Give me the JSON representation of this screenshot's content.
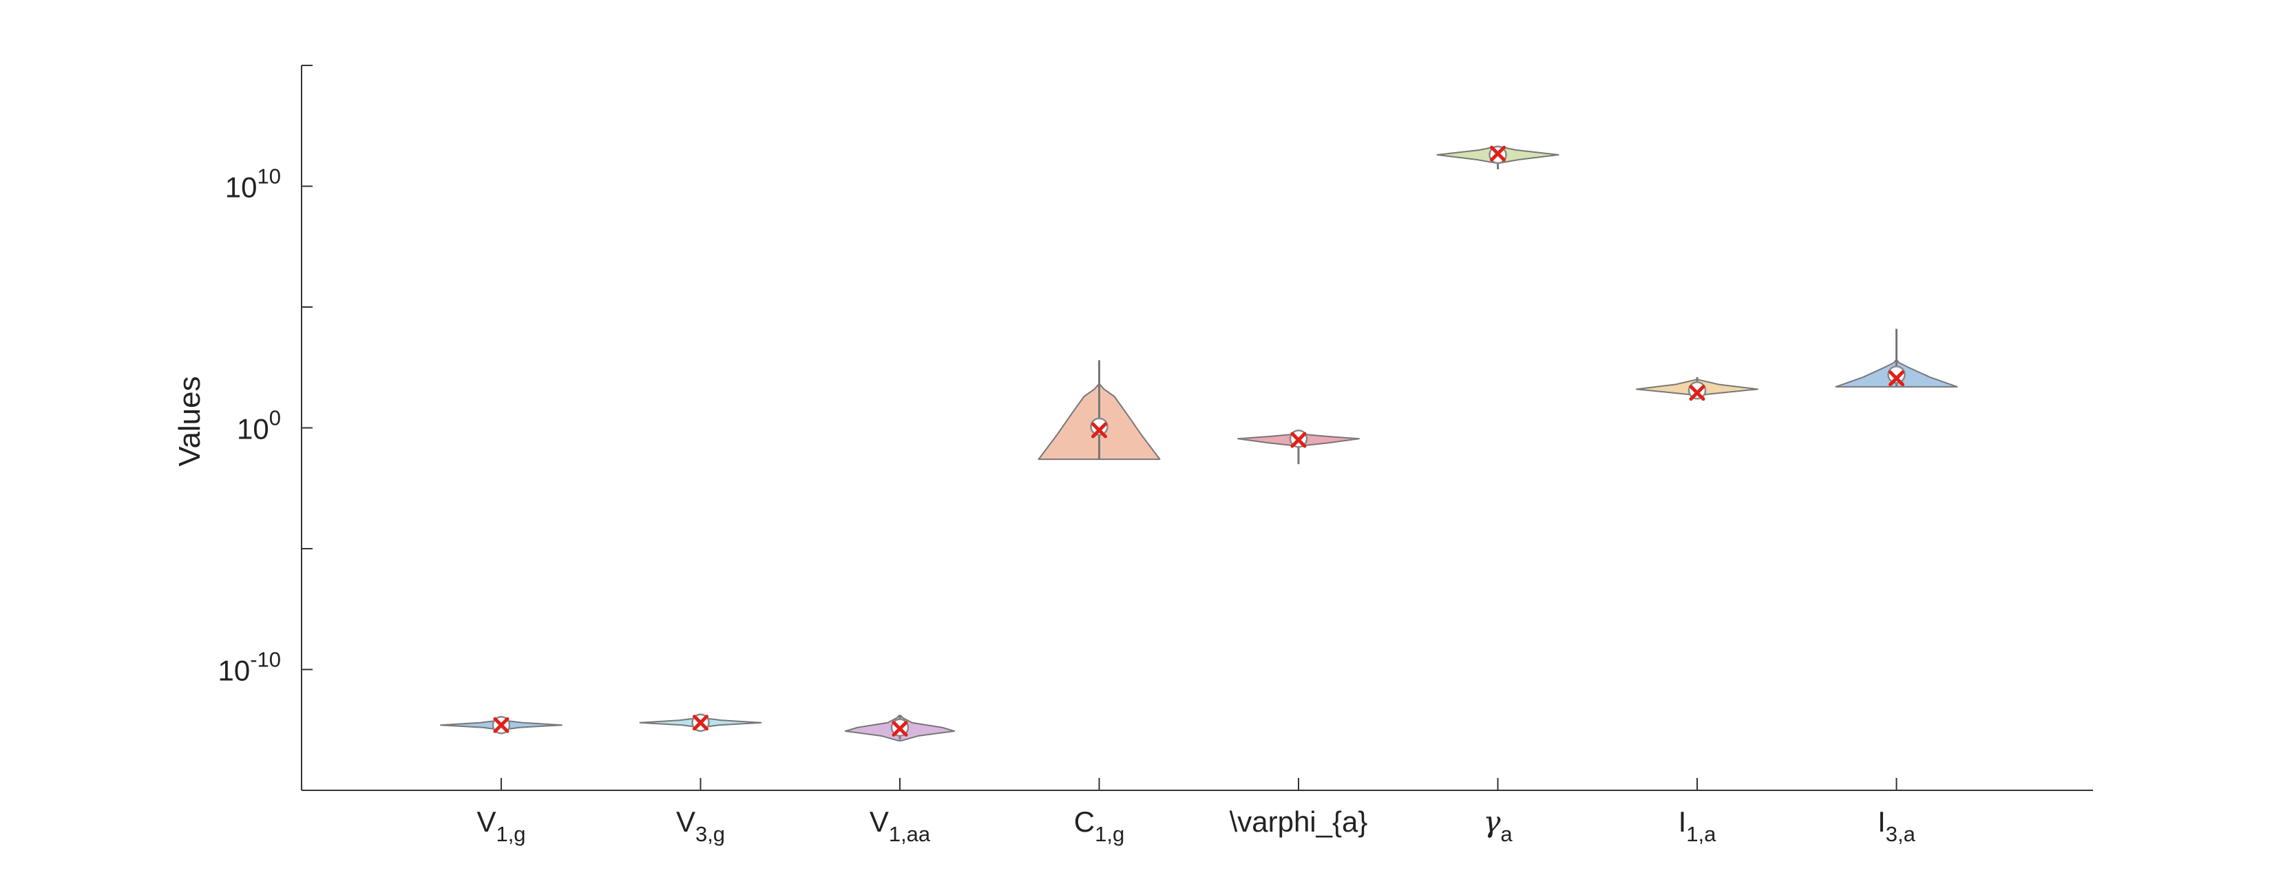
{
  "chart_data": {
    "type": "violin",
    "ylabel": "Values",
    "yscale": "log",
    "ylim_exponent": [
      -15,
      15
    ],
    "yticks": [
      {
        "exp": -10,
        "base": "10",
        "sup": "-10"
      },
      {
        "exp": 0,
        "base": "10",
        "sup": "0"
      },
      {
        "exp": 10,
        "base": "10",
        "sup": "10"
      }
    ],
    "categories": [
      {
        "base": "V",
        "sub": "1,g"
      },
      {
        "base": "V",
        "sub": "3,g"
      },
      {
        "base": "V",
        "sub": "1,aa"
      },
      {
        "base": "C",
        "sub": "1,g"
      },
      {
        "base": "\\varphi_{a}",
        "sub": ""
      },
      {
        "base": "γ",
        "sub": "a"
      },
      {
        "base": "I",
        "sub": "1,a"
      },
      {
        "base": "I",
        "sub": "3,a"
      }
    ],
    "violins": [
      {
        "color": "#a9c8e6",
        "median_exp": -12.3,
        "mean_exp": -12.3,
        "range_exp": [
          -12.4,
          -12.2
        ],
        "profile": [
          [
            -12.5,
            0.01
          ],
          [
            -12.4,
            0.3
          ],
          [
            -12.3,
            1
          ],
          [
            -12.2,
            0.35
          ],
          [
            -12.1,
            0.02
          ]
        ]
      },
      {
        "color": "#b9e3ec",
        "median_exp": -12.2,
        "mean_exp": -12.2,
        "range_exp": [
          -12.3,
          -12.1
        ],
        "profile": [
          [
            -12.4,
            0.01
          ],
          [
            -12.3,
            0.3
          ],
          [
            -12.2,
            1
          ],
          [
            -12.1,
            0.35
          ],
          [
            -12.0,
            0.02
          ]
        ]
      },
      {
        "color": "#d8b7dd",
        "median_exp": -12.4,
        "mean_exp": -12.45,
        "range_exp": [
          -12.9,
          -11.9
        ],
        "profile": [
          [
            -12.95,
            0.02
          ],
          [
            -12.75,
            0.3
          ],
          [
            -12.55,
            0.9
          ],
          [
            -12.4,
            0.7
          ],
          [
            -12.2,
            0.2
          ],
          [
            -12.0,
            0.05
          ],
          [
            -11.9,
            0.01
          ]
        ]
      },
      {
        "color": "#f3c2ad",
        "median_exp": 0.05,
        "mean_exp": -0.1,
        "range_exp": [
          -1.3,
          2.8
        ],
        "profile": [
          [
            -1.3,
            1
          ],
          [
            -0.3,
            0.7
          ],
          [
            0.6,
            0.45
          ],
          [
            1.3,
            0.25
          ],
          [
            1.6,
            0.08
          ],
          [
            1.8,
            0.01
          ]
        ]
      },
      {
        "color": "#e9a9b5",
        "median_exp": -0.45,
        "mean_exp": -0.5,
        "range_exp": [
          -1.5,
          -0.2
        ],
        "profile": [
          [
            -0.75,
            0.02
          ],
          [
            -0.62,
            0.5
          ],
          [
            -0.45,
            1
          ],
          [
            -0.35,
            0.45
          ],
          [
            -0.25,
            0.02
          ]
        ]
      },
      {
        "color": "#d5e2b3",
        "median_exp": 11.3,
        "mean_exp": 11.35,
        "range_exp": [
          10.7,
          11.6
        ],
        "profile": [
          [
            10.95,
            0.01
          ],
          [
            11.1,
            0.35
          ],
          [
            11.3,
            1
          ],
          [
            11.5,
            0.3
          ],
          [
            11.65,
            0.01
          ]
        ]
      },
      {
        "color": "#f0d6a8",
        "median_exp": 1.55,
        "mean_exp": 1.45,
        "range_exp": [
          1.4,
          2.1
        ],
        "profile": [
          [
            1.35,
            0.01
          ],
          [
            1.45,
            0.4
          ],
          [
            1.6,
            1
          ],
          [
            1.8,
            0.35
          ],
          [
            2.0,
            0.01
          ]
        ]
      },
      {
        "color": "#a9c8e6",
        "median_exp": 2.2,
        "mean_exp": 2.05,
        "range_exp": [
          1.7,
          4.1
        ],
        "profile": [
          [
            1.7,
            1
          ],
          [
            2.1,
            0.55
          ],
          [
            2.5,
            0.2
          ],
          [
            2.7,
            0.04
          ],
          [
            2.8,
            0.01
          ]
        ]
      }
    ]
  }
}
